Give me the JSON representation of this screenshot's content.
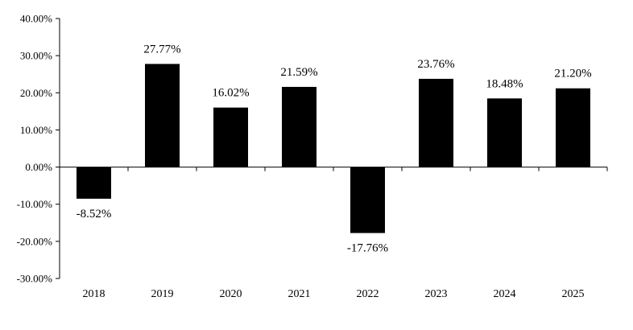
{
  "chart_data": {
    "type": "bar",
    "categories": [
      "2018",
      "2019",
      "2020",
      "2021",
      "2022",
      "2023",
      "2024",
      "2025"
    ],
    "values": [
      -8.52,
      27.77,
      16.02,
      21.59,
      -17.76,
      23.76,
      18.48,
      21.2
    ],
    "data_labels": [
      "-8.52%",
      "27.77%",
      "16.02%",
      "21.59%",
      "-17.76%",
      "23.76%",
      "18.48%",
      "21.20%"
    ],
    "y_ticks": [
      40,
      30,
      20,
      10,
      0,
      -10,
      -20,
      -30
    ],
    "y_tick_labels": [
      "40.00%",
      "30.00%",
      "20.00%",
      "10.00%",
      "0.00%",
      "-10.00%",
      "-20.00%",
      "-30.00%"
    ],
    "ylim": [
      -30,
      40
    ],
    "title": "",
    "xlabel": "",
    "ylabel": "",
    "grid": false,
    "legend": "none",
    "bar_color": "#000000"
  }
}
